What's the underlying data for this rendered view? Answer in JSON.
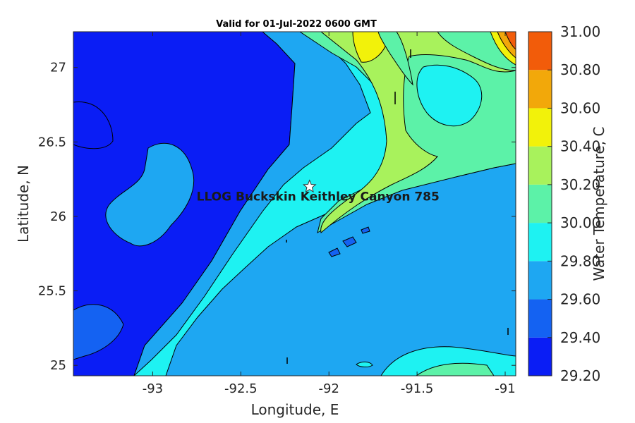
{
  "chart_data": {
    "type": "heatmap",
    "title": "Valid for 01-Jul-2022 0600 GMT",
    "xlabel": "Longitude, E",
    "ylabel": "Latitude, N",
    "xlim": [
      -93.45,
      -90.94
    ],
    "ylim": [
      24.93,
      27.24
    ],
    "xticks": [
      -93,
      -92.5,
      -92,
      -91.5,
      -91
    ],
    "xtick_labels": [
      "-93",
      "-92.5",
      "-92",
      "-91.5",
      "-91"
    ],
    "yticks": [
      25,
      25.5,
      26,
      26.5,
      27
    ],
    "ytick_labels": [
      "25",
      "25.5",
      "26",
      "26.5",
      "27"
    ],
    "grid": false,
    "colorbar": {
      "label": "Water Temperature, C",
      "levels": [
        29.2,
        29.4,
        29.6,
        29.8,
        30.0,
        30.2,
        30.4,
        30.6,
        30.8,
        31.0
      ],
      "tick_labels": [
        "29.20",
        "29.40",
        "29.60",
        "29.80",
        "30.00",
        "30.20",
        "30.40",
        "30.60",
        "30.80",
        "31.00"
      ],
      "colors": [
        "#0a1df5",
        "#1462f2",
        "#1ea7f2",
        "#1ef2f2",
        "#5cf2a8",
        "#a8f25c",
        "#f2f20a",
        "#f2a80a",
        "#f25c0a"
      ]
    },
    "annotations": [
      {
        "label": "LLOG Buckskin Keithley Canyon 785",
        "lon": -92.11,
        "lat": 26.2,
        "marker": "star"
      }
    ],
    "field_description_levels": {
      "west_band": 29.3,
      "central_band": 29.7,
      "axis_band": 29.9,
      "northeast_plume": 30.5
    }
  }
}
